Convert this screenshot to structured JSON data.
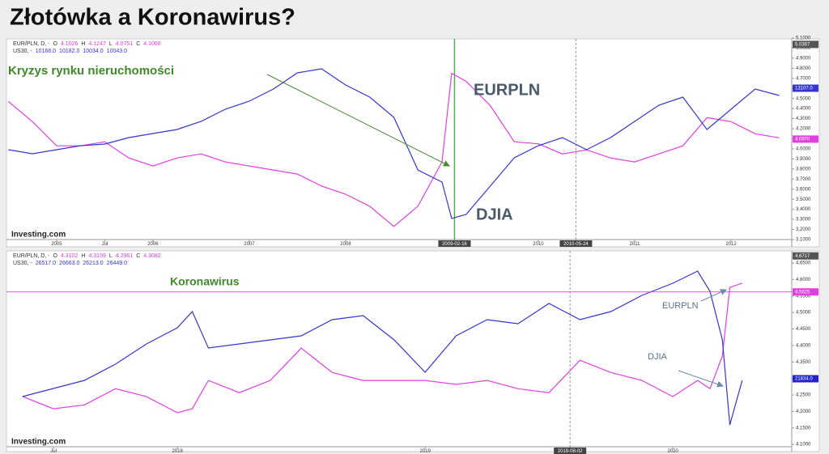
{
  "title": "Złotówka a Koronawirus?",
  "chart_data": [
    {
      "type": "line",
      "legend": [
        {
          "name": "EUR/PLN, D, -",
          "fields": [
            {
              "key": "O",
              "value": "4.1026"
            },
            {
              "key": "H",
              "value": "4.1247"
            },
            {
              "key": "L",
              "value": "4.0751"
            },
            {
              "key": "C",
              "value": "4.1066"
            }
          ]
        },
        {
          "name": "US30, -",
          "fields": [
            {
              "value": "10168.0"
            },
            {
              "value": "10182.0"
            },
            {
              "value": "10034.0"
            },
            {
              "value": "10043.0"
            }
          ]
        }
      ],
      "annotations": [
        "Kryzys rynku nieruchomości",
        "EURPLN",
        "DJIA",
        "Investing.com"
      ],
      "xlim": [
        2004.48,
        2012.63
      ],
      "xticks": [
        2005,
        {
          "value": 2005.5,
          "label": "Jul"
        },
        2006,
        2007,
        2008,
        {
          "value": 2009.13,
          "label": "2009-02-16",
          "line_color": "#4caf50"
        },
        2010,
        {
          "value": 2010.39,
          "label": "2010-05-24",
          "line_color": "#999999"
        },
        2011,
        2012
      ],
      "ylim": [
        3.1,
        5.1
      ],
      "yticks": [
        {
          "value": 3.1,
          "label": "3.1000"
        },
        {
          "value": 3.2,
          "label": "3.2000"
        },
        {
          "value": 3.3,
          "label": "3.3000"
        },
        {
          "value": 3.4,
          "label": "3.4000"
        },
        {
          "value": 3.5,
          "label": "3.5000"
        },
        {
          "value": 3.6,
          "label": "3.6000"
        },
        {
          "value": 3.7,
          "label": "3.7000"
        },
        {
          "value": 3.8,
          "label": "3.8000"
        },
        {
          "value": 3.9,
          "label": "3.9000"
        },
        {
          "value": 4.0,
          "label": "4.0000"
        },
        {
          "value": 4.1,
          "label": "4.1000"
        },
        {
          "value": 4.2,
          "label": "4.2000"
        },
        {
          "value": 4.3,
          "label": "4.3000"
        },
        {
          "value": 4.4,
          "label": "4.4000"
        },
        {
          "value": 4.5,
          "label": "4.5000"
        },
        {
          "value": 4.6,
          "label": "4.6000"
        },
        {
          "value": 4.7,
          "label": "4.7000"
        },
        {
          "value": 4.8,
          "label": "4.8000"
        },
        {
          "value": 4.9,
          "label": "4.9000"
        },
        {
          "value": 5.0,
          "label": "5.0000"
        },
        {
          "value": 5.1,
          "label": "5.1000"
        }
      ],
      "y2lim": [
        6130,
        15420
      ],
      "x": [
        2004.5,
        2004.75,
        2005,
        2005.25,
        2005.5,
        2005.75,
        2006,
        2006.25,
        2006.5,
        2006.75,
        2007,
        2007.25,
        2007.5,
        2007.75,
        2008,
        2008.25,
        2008.5,
        2008.75,
        2009,
        2009.1,
        2009.25,
        2009.5,
        2009.75,
        2010,
        2010.25,
        2010.5,
        2010.75,
        2011,
        2011.25,
        2011.5,
        2011.75,
        2012,
        2012.25,
        2012.5
      ],
      "series": [
        {
          "name": "EUR/PLN",
          "color": "#e23fe2",
          "values": [
            4.47,
            4.27,
            4.03,
            4.03,
            4.07,
            3.91,
            3.83,
            3.91,
            3.95,
            3.87,
            3.83,
            3.79,
            3.75,
            3.63,
            3.55,
            3.43,
            3.23,
            3.43,
            3.87,
            4.75,
            4.67,
            4.43,
            4.07,
            4.05,
            3.95,
            3.99,
            3.91,
            3.87,
            3.95,
            4.03,
            4.31,
            4.27,
            4.15,
            4.11
          ]
        },
        {
          "name": "US30",
          "color": "#3535d0",
          "axis": "y2",
          "values": [
            10272,
            10086,
            10272,
            10459,
            10533,
            10832,
            11018,
            11205,
            11578,
            12137,
            12510,
            13070,
            13816,
            14002,
            13256,
            12697,
            11764,
            9340,
            8780,
            7102,
            7288,
            8594,
            9899,
            10459,
            10832,
            10272,
            10832,
            11578,
            12324,
            12697,
            11205,
            12137,
            13070,
            12771
          ]
        }
      ],
      "price_tags": [
        {
          "value": 5.0367,
          "label": "5.0367",
          "color": "#555555"
        },
        {
          "value": 13107,
          "label": "13107.0",
          "axis": "y2",
          "color": "#3535d0"
        },
        {
          "value": 4.097,
          "label": "4.0970",
          "color": "#e23fe2"
        }
      ]
    },
    {
      "type": "line",
      "legend": [
        {
          "name": "EUR/PLN, D, -",
          "fields": [
            {
              "key": "O",
              "value": "4.3102"
            },
            {
              "key": "H",
              "value": "4.3159"
            },
            {
              "key": "L",
              "value": "4.2961"
            },
            {
              "key": "C",
              "value": "4.3082"
            }
          ]
        },
        {
          "name": "US30, -",
          "fields": [
            {
              "value": "26517.0"
            },
            {
              "value": "26663.0"
            },
            {
              "value": "26213.0"
            },
            {
              "value": "26449.0"
            }
          ]
        }
      ],
      "annotations": [
        "Koronawirus",
        "EURPLN",
        "DJIA",
        "Investing.com"
      ],
      "xlim": [
        2017.31,
        2020.48
      ],
      "xticks": [
        {
          "value": 2017.5,
          "label": "Jul"
        },
        2018,
        2019,
        {
          "value": 2019.585,
          "label": "2019-08-02",
          "line_color": "#999999"
        },
        2020
      ],
      "ylim": [
        4.093,
        4.682
      ],
      "yticks": [
        {
          "value": 4.1,
          "label": "4.1000"
        },
        {
          "value": 4.15,
          "label": "4.1500"
        },
        {
          "value": 4.2,
          "label": "4.2000"
        },
        {
          "value": 4.25,
          "label": "4.2500"
        },
        {
          "value": 4.3,
          "label": "4.3000"
        },
        {
          "value": 4.35,
          "label": "4.3500"
        },
        {
          "value": 4.4,
          "label": "4.4000"
        },
        {
          "value": 4.45,
          "label": "4.4500"
        },
        {
          "value": 4.5,
          "label": "4.5000"
        },
        {
          "value": 4.55,
          "label": "4.5500"
        },
        {
          "value": 4.6,
          "label": "4.6000"
        },
        {
          "value": 4.65,
          "label": "4.6500"
        }
      ],
      "y2lim": [
        17063,
        30695
      ],
      "x": [
        2017.375,
        2017.5,
        2017.625,
        2017.75,
        2017.875,
        2018.0,
        2018.06,
        2018.125,
        2018.25,
        2018.375,
        2018.5,
        2018.625,
        2018.75,
        2018.875,
        2019.0,
        2019.125,
        2019.25,
        2019.375,
        2019.5,
        2019.625,
        2019.75,
        2019.875,
        2020.0,
        2020.1,
        2020.15,
        2020.2,
        2020.23,
        2020.28
      ],
      "series": [
        {
          "name": "EUR/PLN",
          "color": "#e23fe2",
          "values": [
            4.245,
            4.208,
            4.22,
            4.269,
            4.245,
            4.196,
            4.208,
            4.294,
            4.257,
            4.294,
            4.392,
            4.318,
            4.294,
            4.294,
            4.294,
            4.282,
            4.294,
            4.269,
            4.257,
            4.355,
            4.318,
            4.294,
            4.245,
            4.294,
            4.269,
            4.368,
            4.576,
            4.589
          ]
        },
        {
          "name": "US30",
          "color": "#3535d0",
          "axis": "y2",
          "values": [
            20584,
            21152,
            21720,
            22856,
            24276,
            25412,
            26548,
            23990,
            24276,
            24560,
            24844,
            25980,
            26264,
            24560,
            22288,
            24844,
            25980,
            25696,
            27116,
            25980,
            26548,
            27684,
            28536,
            29386,
            27968,
            24560,
            18596,
            21720
          ]
        }
      ],
      "price_tags": [
        {
          "value": 4.6717,
          "label": "4.6717",
          "color": "#555555"
        },
        {
          "value": 4.5625,
          "label": "4.5625",
          "color": "#e23fe2",
          "line": true
        },
        {
          "value": 21834,
          "label": "21834.0",
          "axis": "y2",
          "color": "#2222cc"
        }
      ]
    }
  ]
}
